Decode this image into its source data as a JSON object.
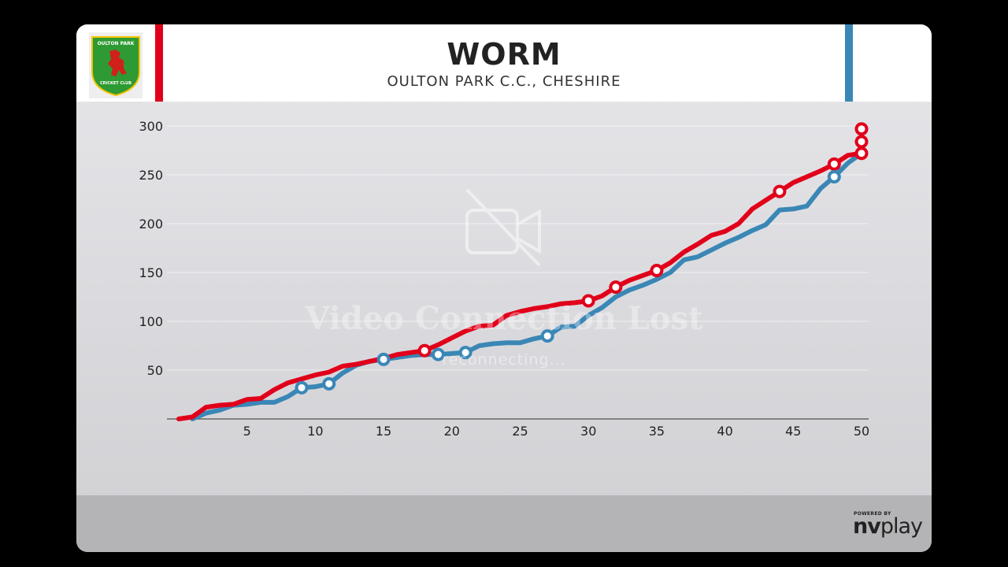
{
  "header": {
    "title": "WORM",
    "subtitle": "OULTON PARK C.C., CHESHIRE",
    "logo": {
      "top_text": "OULTON PARK",
      "bottom_text": "CRICKET CLUB",
      "shield_color": "#2e9a33",
      "lion_color": "#d0201c"
    }
  },
  "colors": {
    "team_red": "#e1001a",
    "team_blue": "#3a87b6"
  },
  "overlay": {
    "icon": "video-off-icon",
    "message": "Video Connection Lost",
    "status": "reconnecting..."
  },
  "footer": {
    "powered_by": "POWERED BY",
    "brand_a": "nv",
    "brand_b": "play"
  },
  "chart_data": {
    "type": "line",
    "title": "WORM",
    "subtitle": "OULTON PARK C.C., CHESHIRE",
    "xlabel": "",
    "ylabel": "",
    "xlim": [
      0,
      50
    ],
    "ylim": [
      0,
      300
    ],
    "x_ticks": [
      5,
      10,
      15,
      20,
      25,
      30,
      35,
      40,
      45,
      50
    ],
    "y_ticks": [
      50,
      100,
      150,
      200,
      250,
      300
    ],
    "grid": true,
    "series": [
      {
        "color": "#e1001a",
        "x": [
          0,
          1,
          2,
          3,
          4,
          5,
          6,
          7,
          8,
          9,
          10,
          11,
          12,
          13,
          14,
          15,
          16,
          17,
          18,
          19,
          20,
          21,
          22,
          23,
          24,
          25,
          26,
          27,
          28,
          29,
          30,
          31,
          32,
          33,
          34,
          35,
          36,
          37,
          38,
          39,
          40,
          41,
          42,
          43,
          44,
          45,
          46,
          47,
          48,
          49,
          50
        ],
        "y": [
          0,
          2,
          12,
          14,
          15,
          20,
          21,
          30,
          37,
          41,
          45,
          48,
          54,
          56,
          59,
          62,
          66,
          68,
          70,
          76,
          83,
          90,
          95,
          96,
          106,
          110,
          113,
          115,
          118,
          119,
          121,
          126,
          135,
          142,
          147,
          152,
          160,
          171,
          179,
          188,
          192,
          200,
          215,
          224,
          233,
          242,
          248,
          254,
          261,
          270,
          272
        ],
        "wickets": [
          {
            "x": 18,
            "y": 70
          },
          {
            "x": 30,
            "y": 121
          },
          {
            "x": 32,
            "y": 135
          },
          {
            "x": 35,
            "y": 152
          },
          {
            "x": 44,
            "y": 233
          },
          {
            "x": 48,
            "y": 261
          },
          {
            "x": 50,
            "y": 272
          },
          {
            "x": 50,
            "y": 284
          },
          {
            "x": 50,
            "y": 297
          }
        ]
      },
      {
        "color": "#3a87b6",
        "x": [
          1,
          2,
          3,
          4,
          5,
          6,
          7,
          8,
          9,
          10,
          11,
          12,
          13,
          14,
          15,
          16,
          17,
          18,
          19,
          20,
          21,
          22,
          23,
          24,
          25,
          26,
          27,
          28,
          29,
          30,
          31,
          32,
          33,
          34,
          35,
          36,
          37,
          38,
          39,
          40,
          41,
          42,
          43,
          44,
          45,
          46,
          47,
          48,
          49,
          50
        ],
        "y": [
          0,
          6,
          9,
          14,
          15,
          17,
          17,
          23,
          32,
          33,
          36,
          47,
          55,
          59,
          61,
          63,
          65,
          66,
          66,
          67,
          68,
          75,
          77,
          78,
          78,
          82,
          85,
          94,
          95,
          106,
          114,
          125,
          132,
          137,
          143,
          150,
          163,
          166,
          173,
          180,
          186,
          193,
          199,
          214,
          215,
          218,
          236,
          248,
          262,
          272
        ],
        "wickets": [
          {
            "x": 9,
            "y": 32
          },
          {
            "x": 11,
            "y": 36
          },
          {
            "x": 15,
            "y": 61
          },
          {
            "x": 19,
            "y": 66
          },
          {
            "x": 21,
            "y": 68
          },
          {
            "x": 27,
            "y": 85
          },
          {
            "x": 48,
            "y": 248
          }
        ]
      }
    ]
  }
}
